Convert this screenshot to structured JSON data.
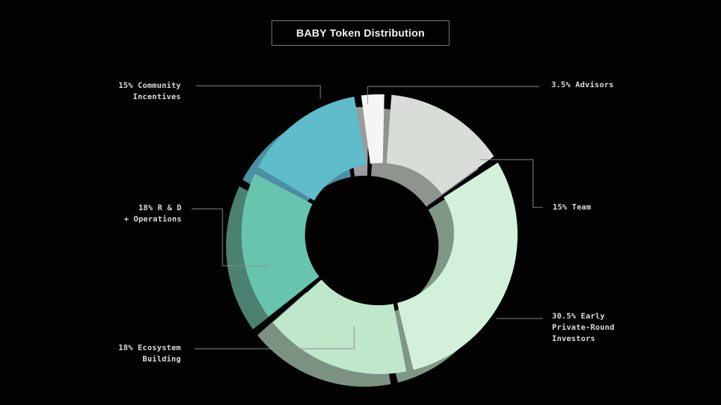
{
  "header": {
    "title": "BABY Token Distribution"
  },
  "chart_data": {
    "type": "pie",
    "variant": "3d-donut",
    "title": "BABY Token Distribution",
    "unit": "%",
    "order": "clockwise-from-top",
    "legend_position": "callout-labels",
    "segments": [
      {
        "label": "Advisors",
        "value": 3.5,
        "color": "#f5f6f4",
        "side_color": "#9a9c9d"
      },
      {
        "label": "Team",
        "value": 15,
        "color": "#d8ded7",
        "side_color": "#8f948e"
      },
      {
        "label": "Early Private-Round Investors",
        "value": 30.5,
        "color": "#d3f0da",
        "side_color": "#7e9787"
      },
      {
        "label": "Ecosystem Building",
        "value": 18,
        "color": "#bfe8cb",
        "side_color": "#7b9282"
      },
      {
        "label": "R & D + Operations",
        "value": 18,
        "color": "#68c5ad",
        "side_color": "#4a8171"
      },
      {
        "label": "Community Incentives",
        "value": 15,
        "color": "#5fbccb",
        "side_color": "#4a8fa3"
      }
    ],
    "background_color": "#020202"
  },
  "callouts": {
    "community": {
      "lines": [
        "15% Community",
        "Incentives"
      ]
    },
    "advisors": {
      "lines": [
        "3.5% Advisors"
      ]
    },
    "team": {
      "lines": [
        "15% Team"
      ]
    },
    "rnd": {
      "lines": [
        "18% R & D",
        "+ Operations"
      ]
    },
    "ecosystem": {
      "lines": [
        "18% Ecosystem",
        "Building"
      ]
    },
    "investors": {
      "lines": [
        "30.5% Early",
        "Private-Round",
        "Investors"
      ]
    }
  }
}
